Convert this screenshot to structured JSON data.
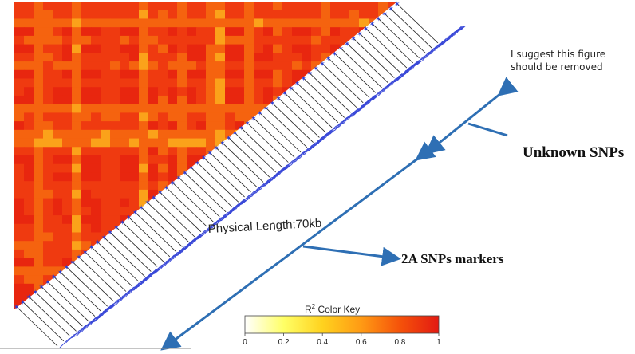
{
  "annotation": {
    "note_line1": "I suggest this figure",
    "note_line2": "should be removed",
    "unknown_label": "Unknown SNPs",
    "markers_label": "2A SNPs markers"
  },
  "chart_data": {
    "type": "heatmap",
    "title": "",
    "physical_length_label": "Physical Length:70kb",
    "n_markers": 62,
    "color_key": {
      "title": "R",
      "title_sup": "2",
      "title_suffix": " Color Key",
      "ticks": [
        "0",
        "0.2",
        "0.4",
        "0.6",
        "0.8",
        "1"
      ],
      "range": [
        0,
        1
      ],
      "colors": [
        "#ffffff",
        "#ffff66",
        "#ffd21e",
        "#ff9a14",
        "#f5520a",
        "#e31a12"
      ]
    },
    "heatmap_colors": {
      "high": "#e8260f",
      "mid_high": "#ef3a10",
      "mid": "#f5630f",
      "low": "#fba21a"
    },
    "arrow_color": "#2e6fb4"
  }
}
